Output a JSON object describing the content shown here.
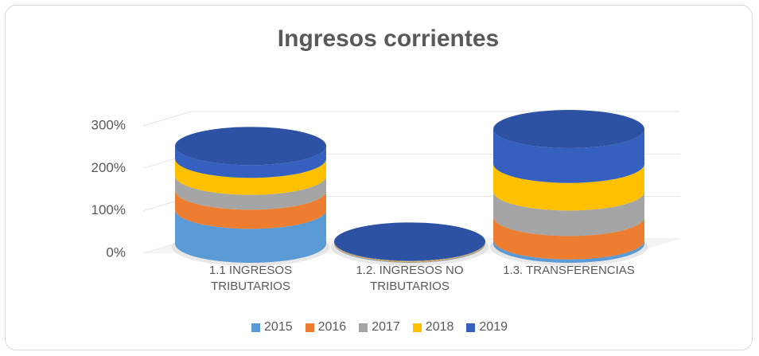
{
  "chart_data": {
    "type": "stacked-cylinder",
    "title": "Ingresos corrientes",
    "categories": [
      "1.1     INGRESOS TRIBUTARIOS",
      "1.2.    INGRESOS NO TRIBUTARIOS",
      "1.3.    TRANSFERENCIAS"
    ],
    "series": [
      {
        "name": "2015",
        "color": "#5b9bd5",
        "values": [
          80,
          1,
          8
        ]
      },
      {
        "name": "2016",
        "color": "#ed7d31",
        "values": [
          45,
          1,
          55
        ]
      },
      {
        "name": "2017",
        "color": "#a5a5a5",
        "values": [
          35,
          1,
          60
        ]
      },
      {
        "name": "2018",
        "color": "#ffc000",
        "values": [
          40,
          1,
          65
        ]
      },
      {
        "name": "2019",
        "color": "#3560c0",
        "values": [
          30,
          1,
          82
        ]
      }
    ],
    "ylim": [
      0,
      300
    ],
    "yticks": [
      {
        "value": 0,
        "label": "0%"
      },
      {
        "value": 100,
        "label": "100%"
      },
      {
        "value": 200,
        "label": "200%"
      },
      {
        "value": 300,
        "label": "300%"
      }
    ],
    "grid": true,
    "legend": "bottom"
  }
}
